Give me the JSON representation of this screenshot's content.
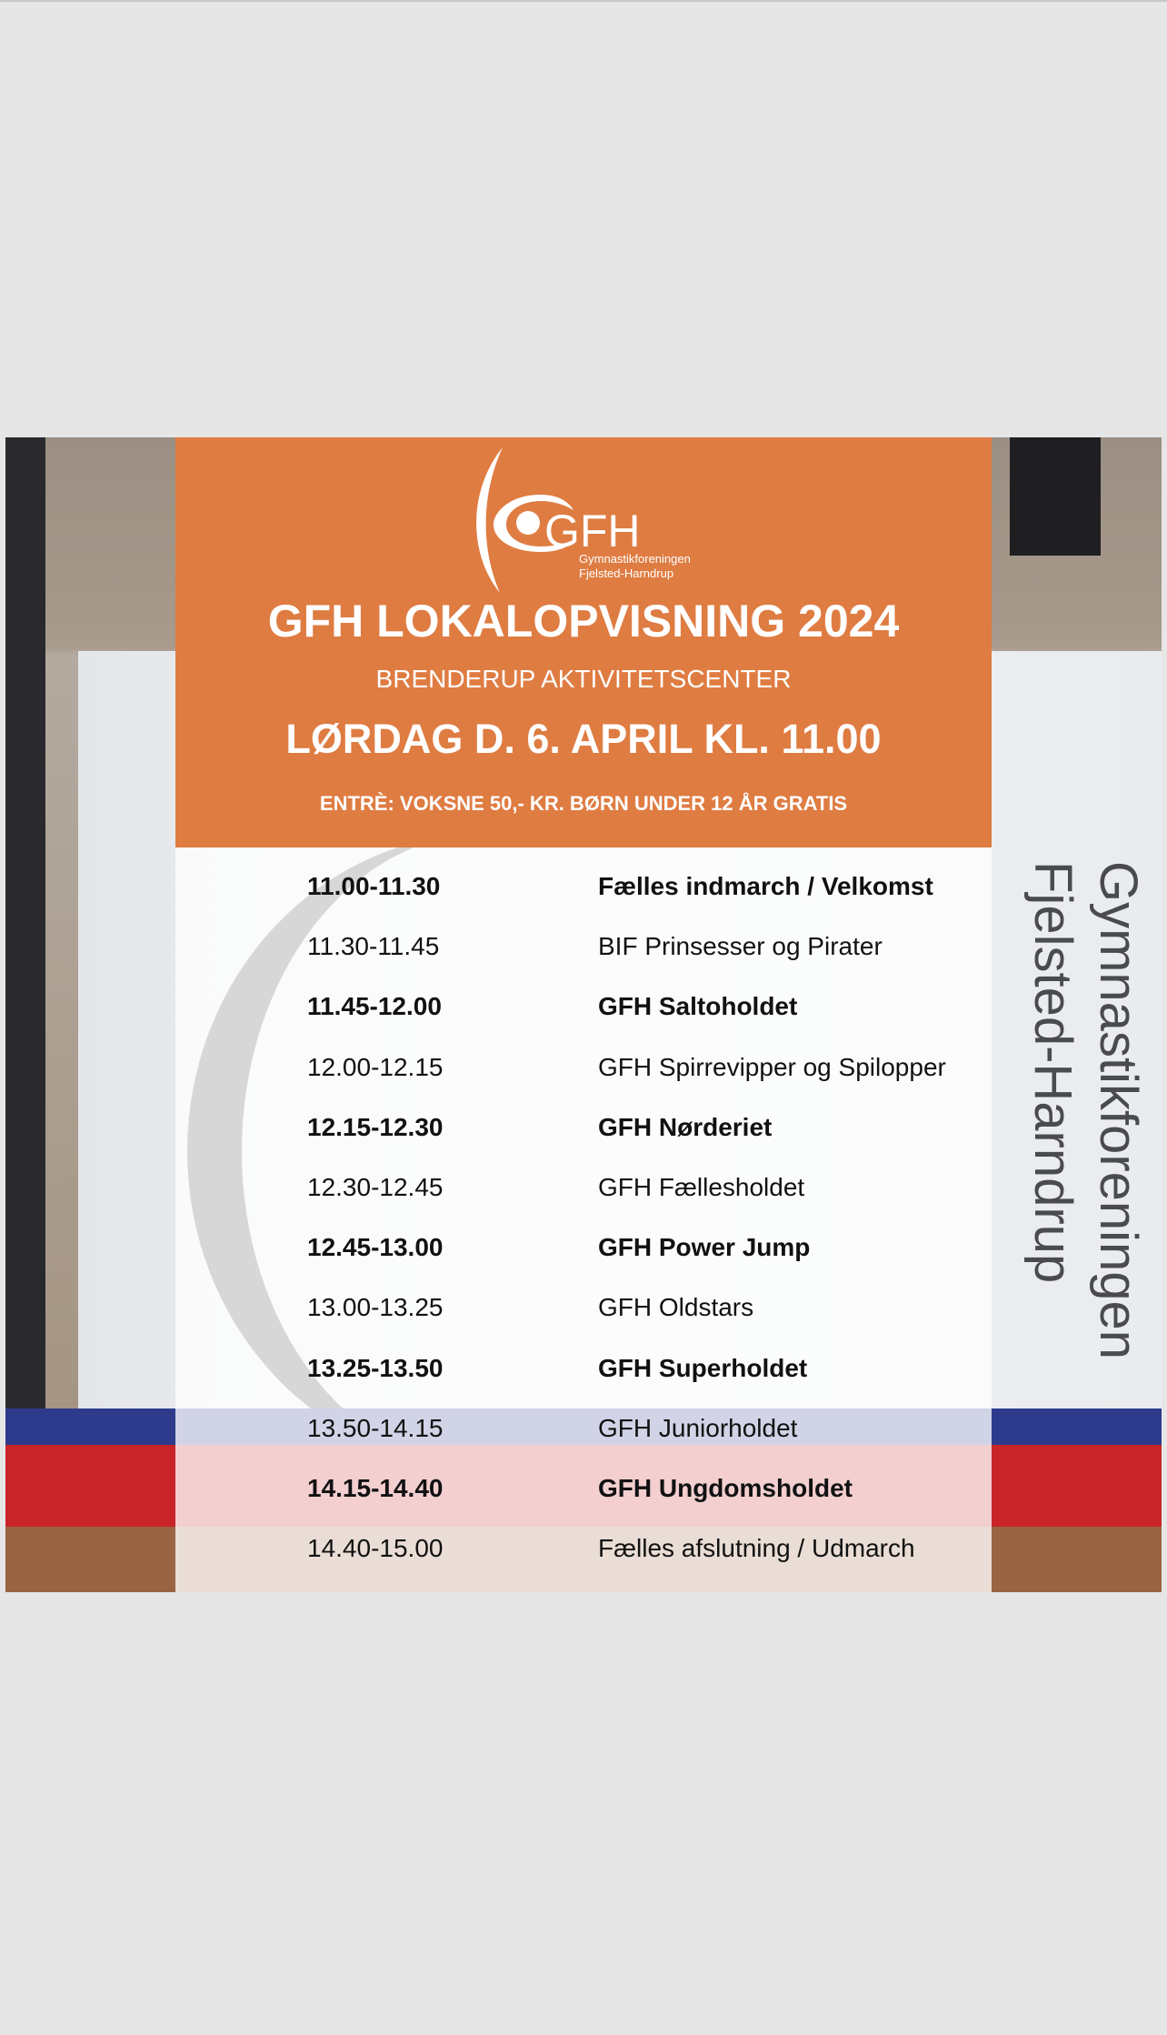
{
  "logo": {
    "mark": "GFH",
    "line1": "Gymnastikforeningen",
    "line2": "Fjelsted-Harndrup"
  },
  "header": {
    "title": "GFH LOKALOPVISNING 2024",
    "venue": "BRENDERUP AKTIVITETSCENTER",
    "date": "LØRDAG D. 6. APRIL KL. 11.00",
    "entry": "ENTRÈ: VOKSNE 50,- KR. BØRN UNDER 12 ÅR GRATIS"
  },
  "colors": {
    "accent": "#df7c42"
  },
  "schedule": [
    {
      "time": "11.00-11.30",
      "name": "Fælles indmarch / Velkomst",
      "bold": true
    },
    {
      "time": "11.30-11.45",
      "name": "BIF Prinsesser og Pirater",
      "bold": false
    },
    {
      "time": "11.45-12.00",
      "name": "GFH Saltoholdet",
      "bold": true
    },
    {
      "time": "12.00-12.15",
      "name": "GFH Spirrevipper og Spilopper",
      "bold": false
    },
    {
      "time": "12.15-12.30",
      "name": "GFH Nørderiet",
      "bold": true
    },
    {
      "time": "12.30-12.45",
      "name": "GFH Fællesholdet",
      "bold": false
    },
    {
      "time": "12.45-13.00",
      "name": "GFH Power Jump",
      "bold": true
    },
    {
      "time": "13.00-13.25",
      "name": "GFH Oldstars",
      "bold": false
    },
    {
      "time": "13.25-13.50",
      "name": "GFH Superholdet",
      "bold": true
    },
    {
      "time": "13.50-14.15",
      "name": "GFH Juniorholdet",
      "bold": false
    },
    {
      "time": "14.15-14.40",
      "name": "GFH Ungdomsholdet",
      "bold": true
    },
    {
      "time": "14.40-15.00",
      "name": "Fælles afslutning / Udmarch",
      "bold": false
    }
  ],
  "background_banner": {
    "line1": "Gymnastikforeningen",
    "line2": "Fjelsted-Harndrup"
  }
}
